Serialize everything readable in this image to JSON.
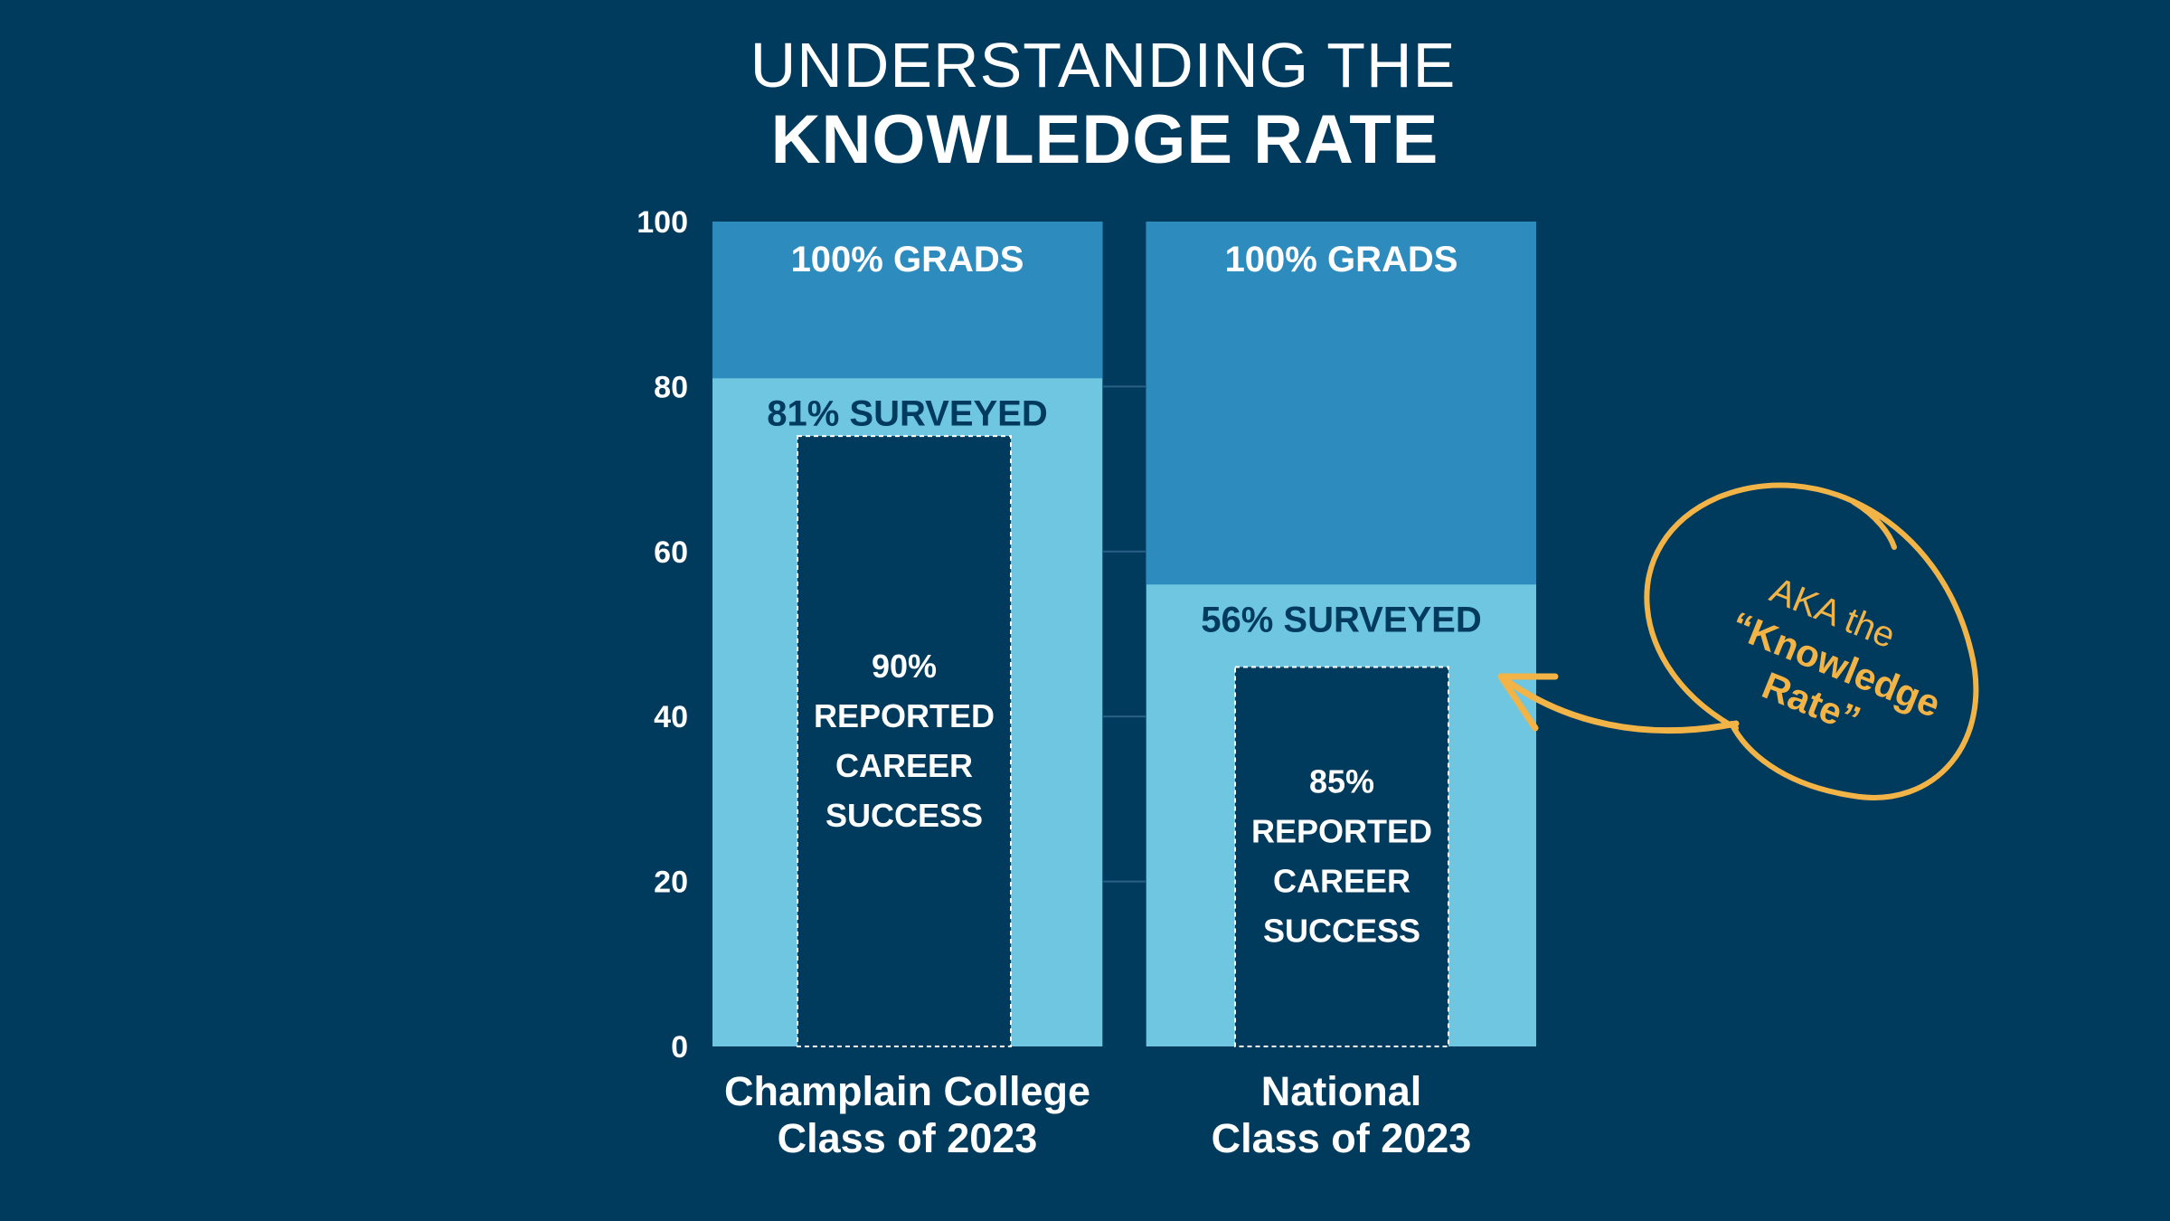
{
  "title": {
    "line1": "UNDERSTANDING THE",
    "line2": "KNOWLEDGE RATE"
  },
  "colors": {
    "background": "#003a5d",
    "grads": "#2e8bbd",
    "surveyed": "#6ec6e0",
    "success": "#003a5d",
    "label_dark": "#003a5d",
    "text_light": "#ffffff",
    "annotation": "#f2b447"
  },
  "chart_data": {
    "type": "bar",
    "ylim": [
      0,
      100
    ],
    "yticks": [
      {
        "value": 0,
        "label": "0"
      },
      {
        "value": 20,
        "label": "20"
      },
      {
        "value": 40,
        "label": "40"
      },
      {
        "value": 60,
        "label": "60"
      },
      {
        "value": 80,
        "label": "80"
      },
      {
        "value": 100,
        "label": "100"
      }
    ],
    "categories": [
      {
        "name_lines": [
          "Champlain College",
          "Class of 2023"
        ],
        "grads": 100,
        "grads_label": "100% GRADS",
        "surveyed": 81,
        "surveyed_label": "81% SURVEYED",
        "success_height": 74,
        "success_pct": 90,
        "success_label_lines": [
          "90%",
          "REPORTED",
          "CAREER",
          "SUCCESS"
        ]
      },
      {
        "name_lines": [
          "National",
          "Class of 2023"
        ],
        "grads": 100,
        "grads_label": "100% GRADS",
        "surveyed": 56,
        "surveyed_label": "56% SURVEYED",
        "success_height": 46,
        "success_pct": 85,
        "success_label_lines": [
          "85%",
          "REPORTED",
          "CAREER",
          "SUCCESS"
        ]
      }
    ],
    "annotation": {
      "lines": [
        "AKA the",
        "“Knowledge",
        "Rate”"
      ],
      "target_category": 1
    }
  }
}
